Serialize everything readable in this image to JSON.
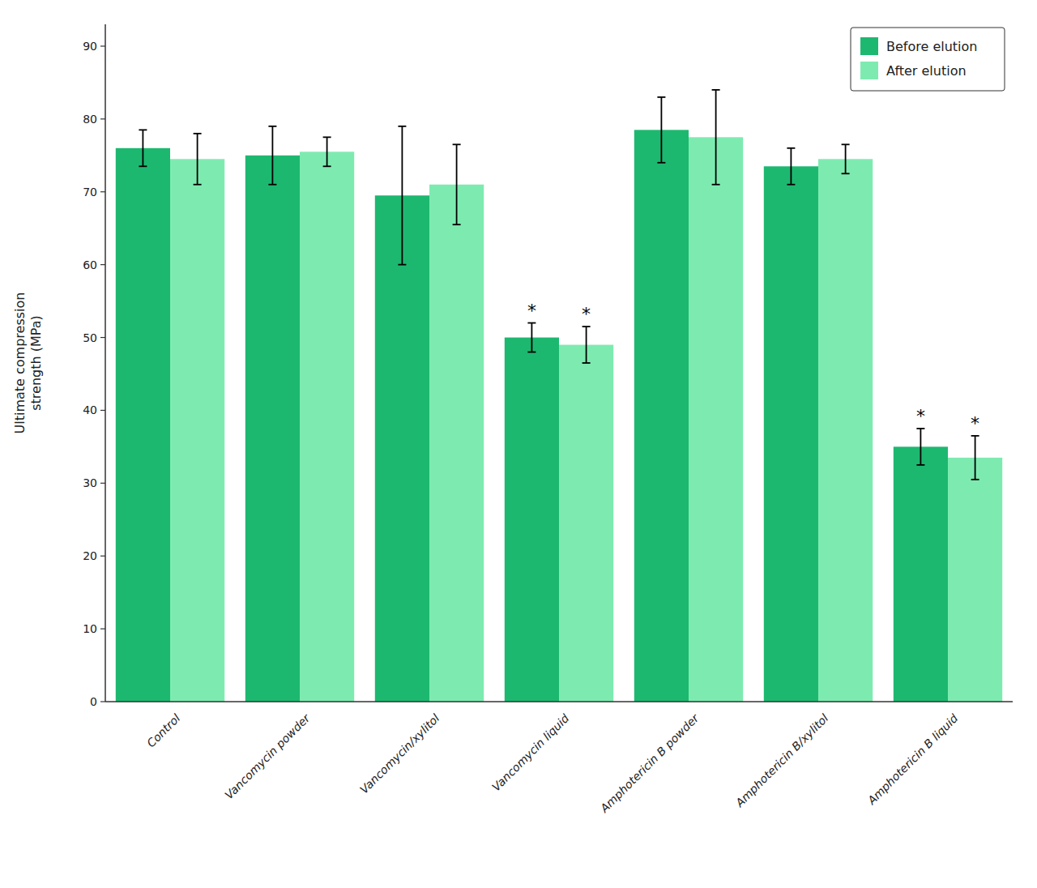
{
  "chart_data": {
    "type": "bar",
    "ylabel": "Ultimate compression\nstrength (MPa)",
    "categories": [
      "Control",
      "Vancomycin powder",
      "Vancomycin/xylitol",
      "Vancomycin liquid",
      "Amphotericin B powder",
      "Amphotericin B/xylitol",
      "Amphotericin B liquid"
    ],
    "series": [
      {
        "name": "Before elution",
        "color": "#1DB870",
        "values": [
          76.0,
          75.0,
          69.5,
          50.0,
          78.5,
          73.5,
          35.0
        ],
        "errors": [
          2.5,
          4.0,
          9.5,
          2.0,
          4.5,
          2.5,
          2.5
        ]
      },
      {
        "name": "After elution",
        "color": "#7DEBB0",
        "values": [
          74.5,
          75.5,
          71.0,
          49.0,
          77.5,
          74.5,
          33.5
        ],
        "errors": [
          3.5,
          2.0,
          5.5,
          2.5,
          6.5,
          2.0,
          3.0
        ]
      }
    ],
    "annotations": [
      {
        "text": "*",
        "category": "Vancomycin liquid",
        "series": "Before elution"
      },
      {
        "text": "*",
        "category": "Vancomycin liquid",
        "series": "After elution"
      },
      {
        "text": "*",
        "category": "Amphotericin B liquid",
        "series": "Before elution"
      },
      {
        "text": "*",
        "category": "Amphotericin B liquid",
        "series": "After elution"
      }
    ],
    "ylim": [
      0,
      93
    ],
    "yticks": [
      0,
      10,
      20,
      30,
      40,
      50,
      60,
      70,
      80,
      90
    ],
    "grid": false,
    "legend": "upper right"
  }
}
